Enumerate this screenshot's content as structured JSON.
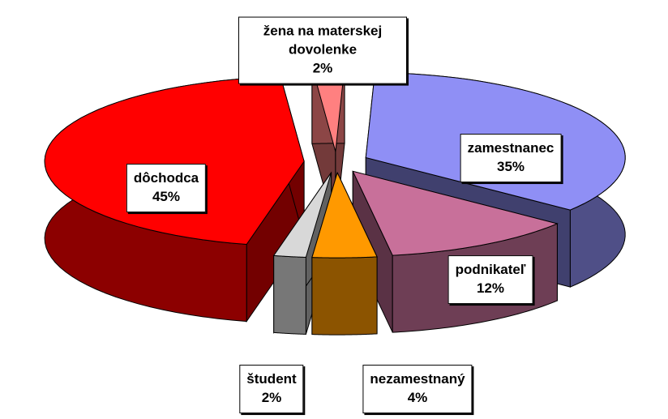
{
  "chart_data": {
    "type": "pie",
    "categories": [
      "zamestnanec",
      "podnikateľ",
      "nezamestnaný",
      "študent",
      "dôchodca",
      "žena na materskej dovolenke"
    ],
    "values": [
      35,
      12,
      4,
      2,
      45,
      2
    ],
    "value_labels": [
      "35%",
      "12%",
      "4%",
      "2%",
      "45%",
      "2%"
    ],
    "colors": [
      "#8f8ff5",
      "#c8709a",
      "#ff9900",
      "#d8d8d8",
      "#ff0000",
      "#ff8080"
    ]
  }
}
